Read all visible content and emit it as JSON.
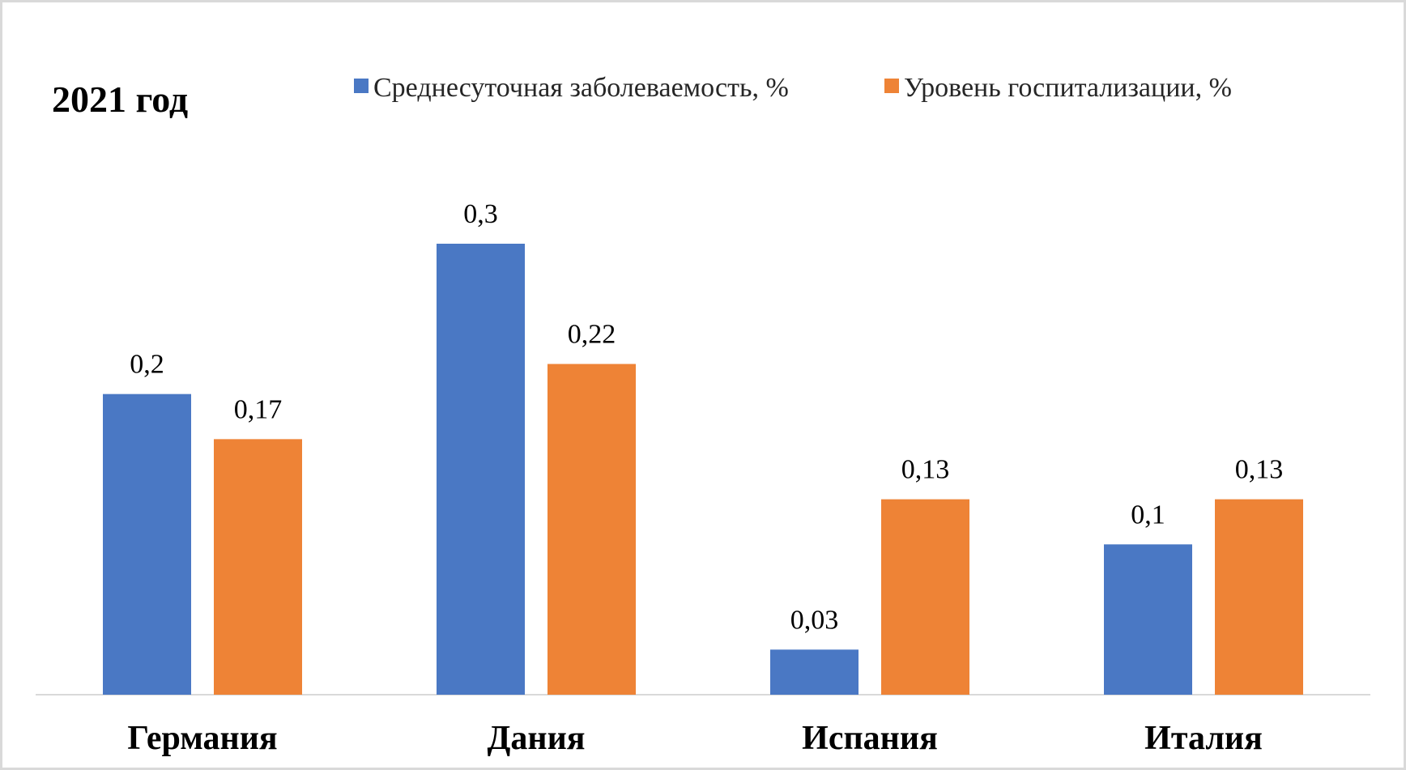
{
  "chart_data": {
    "type": "bar",
    "title": "2021 год",
    "categories": [
      "Германия",
      "Дания",
      "Испания",
      "Италия"
    ],
    "series": [
      {
        "name": "Среднесуточная заболеваемость, %",
        "values": [
          0.2,
          0.3,
          0.03,
          0.1
        ],
        "labels": [
          "0,2",
          "0,3",
          "0,03",
          "0,1"
        ],
        "color": "#4a78c4"
      },
      {
        "name": "Уровень госпитализации, %",
        "values": [
          0.17,
          0.22,
          0.13,
          0.13
        ],
        "labels": [
          "0,17",
          "0,22",
          "0,13",
          "0,13"
        ],
        "color": "#ee8336"
      }
    ],
    "ylim": [
      0,
      0.3
    ],
    "grid": false,
    "legend_position": "top"
  }
}
